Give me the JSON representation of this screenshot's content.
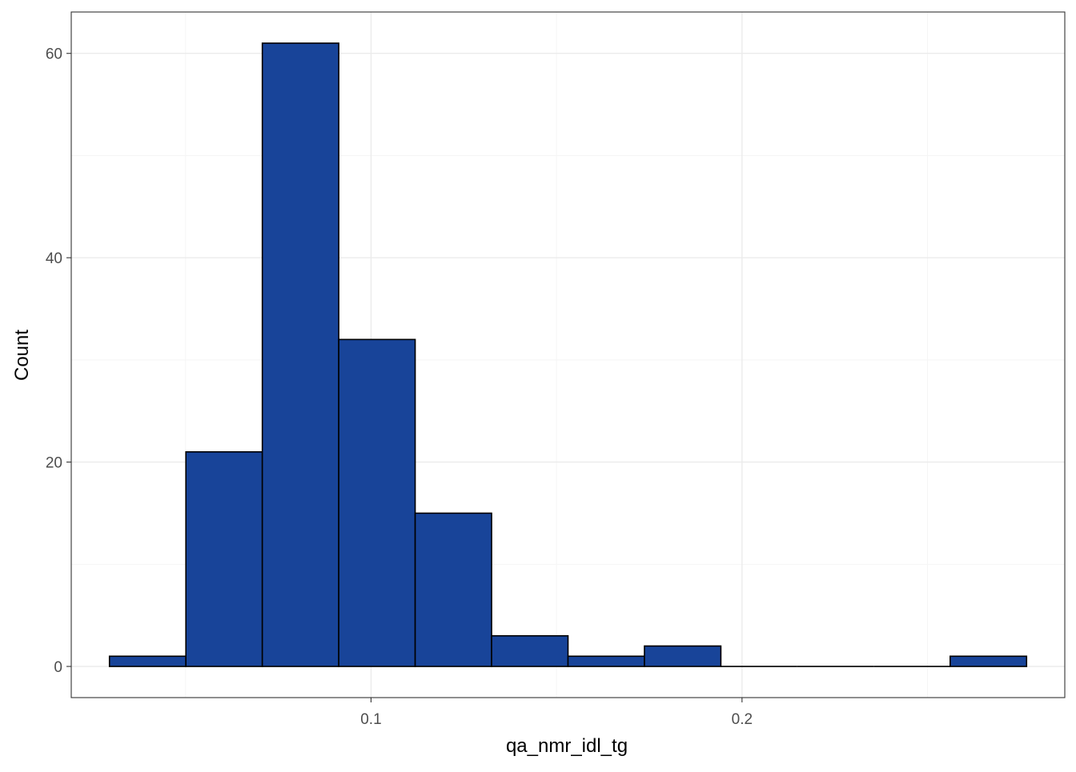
{
  "chart_data": {
    "type": "bar",
    "subtype": "histogram",
    "title": "",
    "xlabel": "qa_nmr_idl_tg",
    "ylabel": "Count",
    "bins": [
      {
        "x0": 0.0295,
        "x1": 0.0501,
        "count": 1
      },
      {
        "x0": 0.0501,
        "x1": 0.0707,
        "count": 21
      },
      {
        "x0": 0.0707,
        "x1": 0.0913,
        "count": 61
      },
      {
        "x0": 0.0913,
        "x1": 0.1119,
        "count": 32
      },
      {
        "x0": 0.1119,
        "x1": 0.1325,
        "count": 15
      },
      {
        "x0": 0.1325,
        "x1": 0.1531,
        "count": 3
      },
      {
        "x0": 0.1531,
        "x1": 0.1737,
        "count": 1
      },
      {
        "x0": 0.1737,
        "x1": 0.1943,
        "count": 2
      },
      {
        "x0": 0.1943,
        "x1": 0.2149,
        "count": 0
      },
      {
        "x0": 0.2149,
        "x1": 0.2355,
        "count": 0
      },
      {
        "x0": 0.2355,
        "x1": 0.2561,
        "count": 0
      },
      {
        "x0": 0.2561,
        "x1": 0.2767,
        "count": 1
      }
    ],
    "xlim": [
      0.0192,
      0.287
    ],
    "ylim": [
      -3.05,
      64.05
    ],
    "x_ticks": [
      {
        "value": 0.1,
        "label": "0.1"
      },
      {
        "value": 0.2,
        "label": "0.2"
      }
    ],
    "x_minor_ticks": [
      0.05,
      0.15,
      0.25
    ],
    "y_ticks": [
      {
        "value": 0,
        "label": "0"
      },
      {
        "value": 20,
        "label": "20"
      },
      {
        "value": 40,
        "label": "40"
      },
      {
        "value": 60,
        "label": "60"
      }
    ],
    "y_minor_ticks": [
      10,
      30,
      50
    ],
    "grid": true,
    "colors": {
      "bar_fill": "#184499",
      "bar_stroke": "#000000",
      "grid_major": "#ebebeb",
      "grid_minor": "#f5f5f5",
      "panel_border": "#333333",
      "tick_text": "#4d4d4d",
      "axis_title": "#000000"
    }
  }
}
